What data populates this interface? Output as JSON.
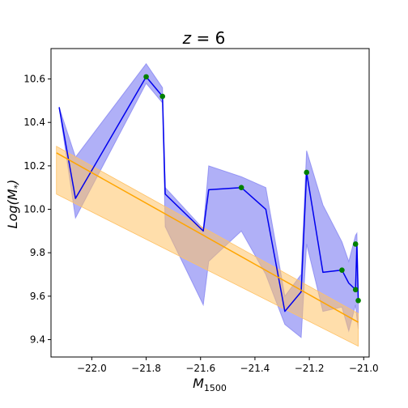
{
  "chart_data": {
    "type": "line",
    "title": "z = 6",
    "title_parts": {
      "var": "z",
      "rest": " = 6"
    },
    "xlabel": "M",
    "xlabel_sub": "1500",
    "ylabel": "Log(M",
    "ylabel_sub": "*",
    "ylabel_close": ")",
    "xlim": [
      -22.15,
      -20.98
    ],
    "ylim": [
      9.32,
      10.74
    ],
    "xticks": [
      -22.0,
      -21.8,
      -21.6,
      -21.4,
      -21.2,
      -21.0
    ],
    "xtick_labels": [
      "−22.0",
      "−21.8",
      "−21.6",
      "−21.4",
      "−21.2",
      "−21.0"
    ],
    "yticks": [
      9.4,
      9.6,
      9.8,
      10.0,
      10.2,
      10.4,
      10.6
    ],
    "ytick_labels": [
      "9.4",
      "9.6",
      "9.8",
      "10.0",
      "10.2",
      "10.4",
      "10.6"
    ],
    "grid": false,
    "colors": {
      "blue_line": "#0000ee",
      "blue_band": "#7070f0",
      "orange_line": "#ffa500",
      "orange_band": "#ffc266",
      "points": "#008000"
    },
    "series": [
      {
        "kind": "line_with_band",
        "x": [
          -22.12,
          -22.06,
          -21.8,
          -21.74,
          -21.73,
          -21.59,
          -21.57,
          -21.45,
          -21.36,
          -21.29,
          -21.23,
          -21.21,
          -21.15,
          -21.08,
          -21.055,
          -21.03,
          -21.025,
          -21.02
        ],
        "y": [
          10.47,
          10.05,
          10.61,
          10.52,
          10.07,
          9.9,
          10.09,
          10.1,
          10.0,
          9.53,
          9.62,
          10.17,
          9.71,
          9.72,
          9.66,
          9.63,
          9.84,
          9.58
        ],
        "y_upper": [
          10.47,
          10.24,
          10.67,
          10.56,
          10.1,
          9.91,
          10.2,
          10.15,
          10.1,
          9.6,
          9.7,
          10.27,
          10.02,
          9.85,
          9.76,
          9.88,
          9.89,
          9.62
        ],
        "y_lower": [
          10.47,
          9.96,
          10.58,
          10.49,
          9.92,
          9.56,
          9.76,
          9.9,
          9.7,
          9.47,
          9.41,
          9.84,
          9.53,
          9.55,
          9.44,
          9.56,
          9.5,
          9.45
        ]
      },
      {
        "kind": "fit_with_band",
        "x": [
          -22.13,
          -21.02
        ],
        "y": [
          10.26,
          9.48
        ],
        "y_upper": [
          10.29,
          9.52
        ],
        "y_lower": [
          10.07,
          9.37
        ]
      },
      {
        "kind": "points",
        "x": [
          -21.8,
          -21.74,
          -21.45,
          -21.21,
          -21.08,
          -21.03,
          -21.03,
          -21.02
        ],
        "y": [
          10.61,
          10.52,
          10.1,
          10.17,
          9.72,
          9.84,
          9.63,
          9.58
        ]
      }
    ]
  }
}
